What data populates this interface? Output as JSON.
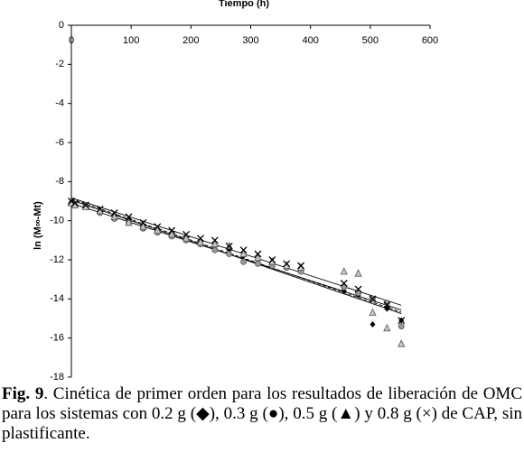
{
  "chart_data": {
    "type": "scatter",
    "title": "Tiempo (h)",
    "y_label": "ln (M∞-Mt)",
    "x": [
      0,
      6,
      24,
      48,
      72,
      96,
      120,
      144,
      168,
      192,
      216,
      240,
      264,
      288,
      312,
      336,
      360,
      384,
      456,
      480,
      504,
      528,
      552
    ],
    "series": [
      {
        "marker": "diamond",
        "color": "#000000",
        "values": [
          -9.1,
          -9.2,
          -9.3,
          -9.6,
          -9.8,
          -10.0,
          -10.3,
          -10.5,
          -10.7,
          -10.9,
          -11.1,
          -11.3,
          -11.5,
          -11.8,
          -12.0,
          -12.2,
          -12.4,
          -12.6,
          -13.6,
          -13.8,
          -15.3,
          -14.5,
          -15.1
        ]
      },
      {
        "marker": "circle",
        "color": "#9a9a9a",
        "values": [
          -9.1,
          -9.2,
          -9.3,
          -9.6,
          -9.9,
          -10.1,
          -10.4,
          -10.6,
          -10.8,
          -11.0,
          -11.2,
          -11.5,
          -11.7,
          -12.1,
          -12.2,
          -12.3,
          -12.4,
          -12.6,
          -13.4,
          -13.7,
          -14.0,
          -14.2,
          -15.4
        ]
      },
      {
        "marker": "triangle",
        "color": "#c8c8c8",
        "values": [
          -9.1,
          -9.2,
          -9.3,
          -9.5,
          -9.8,
          -10.1,
          -10.3,
          -10.5,
          -10.7,
          -10.9,
          -11.1,
          -11.2,
          -11.3,
          -11.7,
          -11.9,
          -12.1,
          -12.3,
          -12.4,
          -12.6,
          -12.7,
          -14.7,
          -15.5,
          -16.3
        ]
      },
      {
        "marker": "x",
        "color": "#000000",
        "values": [
          -9.0,
          -9.1,
          -9.2,
          -9.4,
          -9.6,
          -9.8,
          -10.1,
          -10.3,
          -10.5,
          -10.7,
          -10.9,
          -11.0,
          -11.3,
          -11.5,
          -11.7,
          -12.0,
          -12.2,
          -12.3,
          -13.2,
          -13.5,
          -14.0,
          -14.3,
          -15.1
        ]
      }
    ],
    "trendline": true,
    "xlim": [
      0,
      600
    ],
    "xticks": [
      0,
      100,
      200,
      300,
      400,
      500,
      600
    ],
    "ylim": [
      -18,
      0
    ],
    "yticks": [
      0,
      -2,
      -4,
      -6,
      -8,
      -10,
      -12,
      -14,
      -16,
      -18
    ]
  },
  "caption": {
    "label": "Fig. 9",
    "text": ". Cinética de primer orden para los resultados de liberación de OMC para los sistemas con 0.2 g (◆), 0.3 g (●), 0.5 g (▲) y 0.8 g (×) de CAP, sin plastificante."
  }
}
